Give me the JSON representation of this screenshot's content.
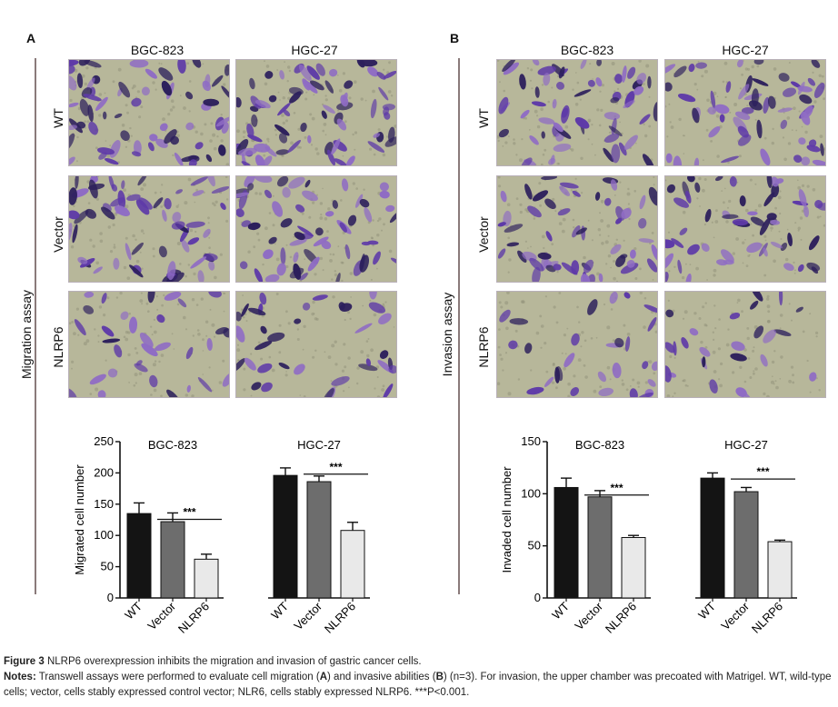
{
  "panels": [
    {
      "letter": "A",
      "assay_label": "Migration assay",
      "columns": [
        "BGC-823",
        "HGC-27"
      ],
      "rows": [
        "WT",
        "Vector",
        "NLRP6"
      ],
      "chart_data": {
        "type": "bar",
        "ylabel": "Migrated cell number",
        "ylim": [
          0,
          250
        ],
        "yticks": [
          0,
          50,
          100,
          150,
          200,
          250
        ],
        "groups": [
          {
            "name": "BGC-823",
            "categories": [
              "WT",
              "Vector",
              "NLRP6"
            ],
            "values": [
              135,
              122,
              62
            ],
            "errors": [
              17,
              14,
              8
            ],
            "significance": "***"
          },
          {
            "name": "HGC-27",
            "categories": [
              "WT",
              "Vector",
              "NLRP6"
            ],
            "values": [
              196,
              186,
              108
            ],
            "errors": [
              12,
              9,
              13
            ],
            "significance": "***"
          }
        ],
        "bar_colors": [
          "#141414",
          "#6d6d6d",
          "#e9e9e9"
        ]
      }
    },
    {
      "letter": "B",
      "assay_label": "Invasion assay",
      "columns": [
        "BGC-823",
        "HGC-27"
      ],
      "rows": [
        "WT",
        "Vector",
        "NLRP6"
      ],
      "chart_data": {
        "type": "bar",
        "ylabel": "Invaded cell number",
        "ylim": [
          0,
          150
        ],
        "yticks": [
          0,
          50,
          100,
          150
        ],
        "groups": [
          {
            "name": "BGC-823",
            "categories": [
              "WT",
              "Vector",
              "NLRP6"
            ],
            "values": [
              106,
              97,
              58
            ],
            "errors": [
              9,
              6,
              2
            ],
            "significance": "***"
          },
          {
            "name": "HGC-27",
            "categories": [
              "WT",
              "Vector",
              "NLRP6"
            ],
            "values": [
              115,
              102,
              54
            ],
            "errors": [
              5,
              4,
              1.5
            ],
            "significance": "***"
          }
        ],
        "bar_colors": [
          "#141414",
          "#6d6d6d",
          "#e9e9e9"
        ]
      }
    }
  ],
  "caption": {
    "figure_label": "Figure 3",
    "title": "NLRP6 overexpression inhibits the migration and invasion of gastric cancer cells.",
    "notes_label": "Notes:",
    "notes_1": "Transwell assays were performed to evaluate cell migration (",
    "notes_A": "A",
    "notes_2": ") and invasive abilities (",
    "notes_B": "B",
    "notes_3": ") (n=3). For invasion, the upper chamber was precoated with Matrigel. WT, wild-type cells; vector, cells stably expressed control vector; NLR6, cells stably expressed NLRP6. ***P<0.001."
  },
  "micrograph_colors": {
    "background": "#b7b79a",
    "cell": "#5e3aa8",
    "cell_dark": "#2c1f5c",
    "cell_light": "#8f6cc4"
  }
}
